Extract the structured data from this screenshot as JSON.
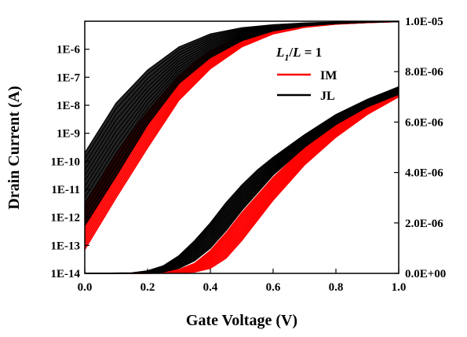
{
  "chart_data": {
    "type": "line",
    "xlabel": "Gate Voltage (V)",
    "ylabel": "Drain Current (A)",
    "xlim": [
      0.0,
      1.0
    ],
    "ylim_left_log": [
      1e-14,
      1e-05
    ],
    "ylim_right_linear": [
      0,
      1e-05
    ],
    "left_axis_scale": "log",
    "right_axis_scale": "linear",
    "x_ticks": [
      "0.0",
      "0.2",
      "0.4",
      "0.6",
      "0.8",
      "1.0"
    ],
    "left_ticks": [
      "1E-14",
      "1E-13",
      "1E-12",
      "1E-11",
      "1E-10",
      "1E-9",
      "1E-8",
      "1E-7",
      "1E-6"
    ],
    "right_ticks": [
      "0.0E+00",
      "2.0E-06",
      "4.0E-06",
      "6.0E-06",
      "8.0E-06",
      "1.0E-05"
    ],
    "grid": false,
    "legend": {
      "placement": "top-right",
      "title_main": "L",
      "title_sub": "1",
      "title_rest_a": "/",
      "title_rest_b": "L",
      "title_rest_c": " = 1",
      "entries": [
        {
          "label": "IM",
          "color": "#ff0000"
        },
        {
          "label": "JL",
          "color": "#000000"
        }
      ]
    },
    "series": [
      {
        "name": "IM",
        "axis": "left-log",
        "color": "#ff0000",
        "band": {
          "x": [
            0.0,
            0.1,
            0.2,
            0.3,
            0.4,
            0.5,
            0.6,
            0.7,
            0.8,
            0.9,
            1.0
          ],
          "y_low": [
            7e-14,
            5e-12,
            3e-10,
            1.5e-08,
            2e-07,
            1.2e-06,
            3.5e-06,
            6e-06,
            7.8e-06,
            8.9e-06,
            9.6e-06
          ],
          "y_high": [
            3e-12,
            2e-10,
            6e-09,
            1.2e-07,
            9e-07,
            3e-06,
            5.5e-06,
            7.3e-06,
            8.5e-06,
            9.3e-06,
            9.8e-06
          ]
        }
      },
      {
        "name": "JL",
        "axis": "left-log",
        "color": "#000000",
        "band": {
          "x": [
            0.0,
            0.1,
            0.2,
            0.3,
            0.4,
            0.5,
            0.6,
            0.7,
            0.8,
            0.9,
            1.0
          ],
          "y_low": [
            5e-13,
            3e-11,
            2e-09,
            6e-08,
            5e-07,
            2e-06,
            4.5e-06,
            6.8e-06,
            8.2e-06,
            9.1e-06,
            9.7e-06
          ],
          "y_high": [
            2e-10,
            1.2e-08,
            1.8e-07,
            1.2e-06,
            3.5e-06,
            5.8e-06,
            7.5e-06,
            8.6e-06,
            9.3e-06,
            9.7e-06,
            9.9e-06
          ]
        }
      },
      {
        "name": "IM",
        "axis": "right-linear",
        "color": "#ff0000",
        "band": {
          "x": [
            0.0,
            0.2,
            0.3,
            0.35,
            0.4,
            0.45,
            0.5,
            0.55,
            0.6,
            0.7,
            0.8,
            0.9,
            1.0
          ],
          "y_low": [
            0,
            0,
            1e-08,
            5e-08,
            2e-07,
            6e-07,
            1.3e-06,
            2.1e-06,
            2.9e-06,
            4.3e-06,
            5.4e-06,
            6.3e-06,
            7e-06
          ],
          "y_high": [
            0,
            1e-08,
            1.5e-07,
            4e-07,
            9e-07,
            1.6e-06,
            2.4e-06,
            3.1e-06,
            3.8e-06,
            5e-06,
            5.9e-06,
            6.7e-06,
            7.2e-06
          ]
        }
      },
      {
        "name": "JL",
        "axis": "right-linear",
        "color": "#000000",
        "band": {
          "x": [
            0.0,
            0.15,
            0.2,
            0.25,
            0.3,
            0.35,
            0.4,
            0.45,
            0.5,
            0.55,
            0.6,
            0.7,
            0.8,
            0.9,
            1.0
          ],
          "y_low": [
            0,
            0,
            1e-08,
            5e-08,
            2e-07,
            5e-07,
            1e-06,
            1.7e-06,
            2.5e-06,
            3.2e-06,
            3.9e-06,
            5e-06,
            5.9e-06,
            6.6e-06,
            7.1e-06
          ],
          "y_high": [
            0,
            2e-08,
            1e-07,
            3e-07,
            7e-07,
            1.3e-06,
            2e-06,
            2.8e-06,
            3.5e-06,
            4.1e-06,
            4.6e-06,
            5.5e-06,
            6.3e-06,
            6.9e-06,
            7.4e-06
          ]
        }
      }
    ]
  }
}
